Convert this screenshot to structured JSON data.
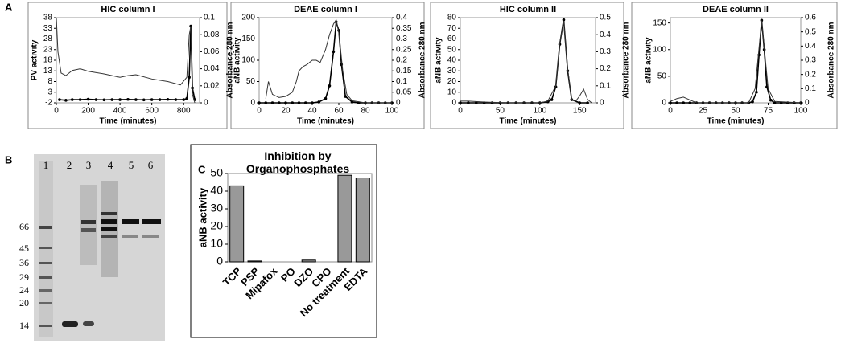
{
  "panel_labels": [
    "A",
    "B",
    "C"
  ],
  "gel": {
    "lanes": [
      "1",
      "2",
      "3",
      "4",
      "5",
      "6"
    ],
    "markers": [
      "66",
      "45",
      "36",
      "29",
      "24",
      "20",
      "14"
    ]
  },
  "chart_data": [
    {
      "type": "line",
      "title": "HIC column I",
      "xlabel": "Time (minutes)",
      "ylabel": "PV activity",
      "y2label": "Absorbance 280 nm",
      "xlim": [
        0,
        900
      ],
      "xticks": [
        0,
        200,
        400,
        600,
        800
      ],
      "ylim": [
        -2,
        38
      ],
      "yticks": [
        -2,
        3,
        8,
        13,
        18,
        23,
        28,
        33,
        38
      ],
      "y2lim": [
        0,
        0.1
      ],
      "y2ticks": [
        0,
        0.02,
        0.04,
        0.06,
        0.08,
        0.1
      ],
      "series": [
        {
          "color": "#000000",
          "markers": true,
          "x": [
            20,
            60,
            100,
            150,
            200,
            250,
            300,
            350,
            400,
            450,
            500,
            550,
            600,
            650,
            700,
            750,
            800,
            820,
            835,
            845,
            855,
            870
          ],
          "values": [
            -0.5,
            -0.8,
            -0.5,
            -0.5,
            -0.3,
            -0.5,
            -0.6,
            -0.5,
            -0.5,
            -0.4,
            -0.5,
            -0.6,
            -0.5,
            -0.5,
            -0.4,
            -0.5,
            -0.5,
            0,
            10,
            34,
            5,
            -0.5
          ]
        },
        {
          "axis": "y2",
          "color": "#333333",
          "x": [
            0,
            10,
            30,
            60,
            100,
            150,
            200,
            300,
            400,
            450,
            500,
            600,
            700,
            780,
            820,
            835,
            845,
            855,
            870
          ],
          "values": [
            0.1,
            0.06,
            0.035,
            0.032,
            0.038,
            0.04,
            0.037,
            0.034,
            0.03,
            0.032,
            0.033,
            0.028,
            0.025,
            0.021,
            0.03,
            0.08,
            0.09,
            0.01,
            0
          ]
        }
      ]
    },
    {
      "type": "line",
      "title": "DEAE column I",
      "xlabel": "Time (minutes)",
      "ylabel": "aNB activity",
      "y2label": "Absorbance 280 nm",
      "xlim": [
        0,
        100
      ],
      "xticks": [
        0,
        20,
        40,
        60,
        80,
        100
      ],
      "ylim": [
        0,
        200
      ],
      "yticks": [
        0,
        50,
        100,
        150,
        200
      ],
      "y2lim": [
        0,
        0.4
      ],
      "y2ticks": [
        0,
        0.05,
        0.1,
        0.15,
        0.2,
        0.25,
        0.3,
        0.35,
        0.4
      ],
      "series": [
        {
          "color": "#000000",
          "markers": true,
          "x": [
            0,
            5,
            10,
            15,
            20,
            25,
            30,
            35,
            40,
            45,
            50,
            53,
            56,
            58,
            60,
            62,
            65,
            70,
            75,
            80,
            85,
            90,
            95,
            100
          ],
          "values": [
            0,
            0,
            0,
            0,
            0,
            0,
            0,
            0,
            0,
            2,
            10,
            40,
            120,
            190,
            170,
            90,
            15,
            2,
            0,
            0,
            0,
            0,
            0,
            0
          ]
        },
        {
          "axis": "y2",
          "color": "#333333",
          "x": [
            5,
            6,
            7,
            10,
            15,
            20,
            25,
            28,
            30,
            33,
            36,
            40,
            43,
            46,
            50,
            53,
            56,
            58,
            60,
            63,
            66,
            70,
            80,
            100
          ],
          "values": [
            0.02,
            0.06,
            0.1,
            0.04,
            0.025,
            0.03,
            0.05,
            0.1,
            0.15,
            0.17,
            0.18,
            0.2,
            0.2,
            0.19,
            0.25,
            0.32,
            0.37,
            0.39,
            0.33,
            0.15,
            0.04,
            0.01,
            0,
            0
          ]
        }
      ]
    },
    {
      "type": "line",
      "title": "HIC column II",
      "xlabel": "Time (minutes)",
      "ylabel": "aNB activity",
      "y2label": "Absorbance 280 nm",
      "xlim": [
        0,
        170
      ],
      "xticks": [
        0,
        50,
        100,
        150
      ],
      "ylim": [
        0,
        80
      ],
      "yticks": [
        0,
        10,
        20,
        30,
        40,
        50,
        60,
        70,
        80
      ],
      "y2lim": [
        0,
        0.5
      ],
      "y2ticks": [
        0,
        0.1,
        0.2,
        0.3,
        0.4,
        0.5
      ],
      "series": [
        {
          "color": "#000000",
          "markers": true,
          "x": [
            0,
            10,
            20,
            30,
            40,
            50,
            60,
            70,
            80,
            90,
            100,
            110,
            115,
            120,
            125,
            130,
            135,
            140,
            150,
            160
          ],
          "values": [
            0,
            0,
            0,
            0,
            0,
            0,
            0,
            0,
            0,
            0,
            0,
            1,
            3,
            15,
            55,
            78,
            30,
            3,
            0,
            0
          ]
        },
        {
          "axis": "y2",
          "color": "#333333",
          "x": [
            0,
            10,
            30,
            60,
            100,
            110,
            120,
            125,
            130,
            135,
            140,
            145,
            150,
            155,
            160,
            165
          ],
          "values": [
            0.01,
            0.01,
            0.005,
            0,
            0,
            0.01,
            0.1,
            0.35,
            0.48,
            0.2,
            0.02,
            0.01,
            0.04,
            0.08,
            0.02,
            0
          ]
        }
      ]
    },
    {
      "type": "line",
      "title": "DEAE column II",
      "xlabel": "Time (minutes)",
      "ylabel": "aNB activity",
      "y2label": "Absorbance 280 nm",
      "xlim": [
        0,
        100
      ],
      "xticks": [
        0,
        25,
        50,
        75,
        100
      ],
      "ylim": [
        0,
        160
      ],
      "yticks": [
        0,
        50,
        100,
        150
      ],
      "y2lim": [
        0,
        0.6
      ],
      "y2ticks": [
        0,
        0.1,
        0.2,
        0.3,
        0.4,
        0.5,
        0.6
      ],
      "series": [
        {
          "color": "#000000",
          "markers": true,
          "x": [
            0,
            5,
            10,
            15,
            20,
            25,
            30,
            35,
            40,
            45,
            50,
            55,
            60,
            63,
            66,
            68,
            70,
            72,
            74,
            77,
            80,
            85,
            90,
            95,
            100
          ],
          "values": [
            0,
            0,
            0,
            0,
            0,
            0,
            0,
            0,
            0,
            0,
            0,
            0,
            0,
            2,
            20,
            90,
            155,
            100,
            30,
            5,
            0,
            0,
            0,
            0,
            0
          ]
        },
        {
          "axis": "y2",
          "color": "#333333",
          "x": [
            0,
            5,
            10,
            15,
            20,
            25,
            60,
            65,
            70,
            75,
            80,
            100
          ],
          "values": [
            0.01,
            0.03,
            0.04,
            0.02,
            0,
            0,
            0,
            0.1,
            0.58,
            0.1,
            0.01,
            0
          ]
        }
      ]
    },
    {
      "type": "bar",
      "title": "Inhibition by Organophosphates",
      "ylabel": "aNB activity",
      "color": "#999999",
      "categories": [
        "TCP",
        "PSP",
        "Mipafox",
        "PO",
        "DZO",
        "CPO",
        "No treatment",
        "EDTA"
      ],
      "values": [
        43,
        0.5,
        0,
        0,
        1,
        0,
        49,
        47.5
      ],
      "ylim": [
        0,
        50
      ],
      "yticks": [
        0,
        10,
        20,
        30,
        40,
        50
      ]
    }
  ]
}
